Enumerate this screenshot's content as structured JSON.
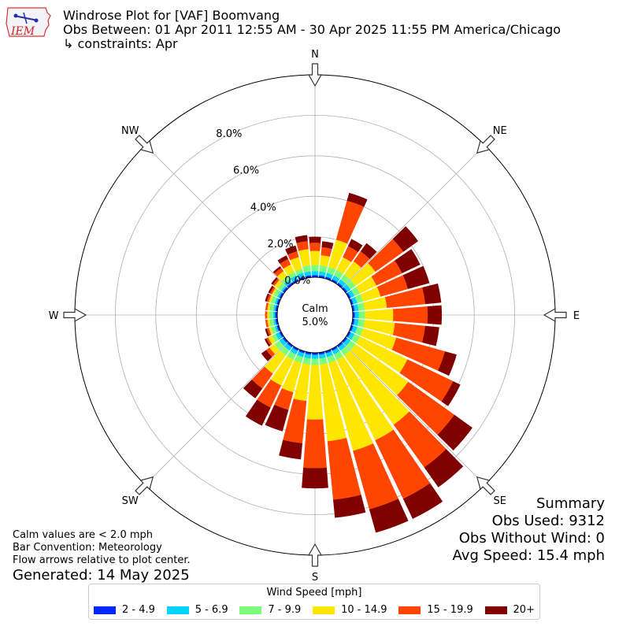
{
  "header": {
    "title": "Windrose Plot for [VAF] Boomvang",
    "subtitle": "Obs Between: 01 Apr 2011 12:55 AM - 30 Apr 2025 11:55 PM America/Chicago",
    "constraints": "↳ constraints: Apr"
  },
  "logo": {
    "text": "IEM"
  },
  "notes": {
    "line1": "Calm values are < 2.0 mph",
    "line2": "Bar Convention: Meteorology",
    "line3": "Flow arrows relative to plot center.",
    "generated": "Generated: 14 May 2025"
  },
  "summary": {
    "title": "Summary",
    "obs_used": "Obs Used: 9312",
    "obs_without_wind": "Obs Without Wind: 0",
    "avg_speed": "Avg Speed: 15.4 mph"
  },
  "legend": {
    "title": "Wind Speed [mph]",
    "items": [
      {
        "label": "2 - 4.9",
        "color": "#0028ff"
      },
      {
        "label": "5 - 6.9",
        "color": "#00d4ff"
      },
      {
        "label": "7 - 9.9",
        "color": "#7cff7a"
      },
      {
        "label": "10 - 14.9",
        "color": "#ffe600"
      },
      {
        "label": "15 - 19.9",
        "color": "#ff4500"
      },
      {
        "label": "20+",
        "color": "#800000"
      }
    ]
  },
  "chart_data": {
    "type": "windrose",
    "calm_label": "Calm",
    "calm_percent": "5.0%",
    "compass_labels": [
      "N",
      "NE",
      "E",
      "SE",
      "S",
      "SW",
      "W",
      "NW"
    ],
    "radial_tick_labels": [
      "0.0%",
      "2.0%",
      "4.0%",
      "6.0%",
      "8.0%"
    ],
    "speed_bins": [
      "2 - 4.9",
      "5 - 6.9",
      "7 - 9.9",
      "10 - 14.9",
      "15 - 19.9",
      "20+"
    ],
    "sector_width_deg": 10,
    "direction_deg": [
      0,
      10,
      20,
      30,
      40,
      50,
      60,
      70,
      80,
      90,
      100,
      110,
      120,
      130,
      140,
      150,
      160,
      170,
      180,
      190,
      200,
      210,
      220,
      230,
      240,
      250,
      260,
      270,
      280,
      290,
      300,
      310,
      320,
      330,
      340,
      350
    ],
    "cumulative_percent": [
      [
        0.1,
        0.3,
        0.6,
        1.3,
        1.7,
        2.0
      ],
      [
        0.1,
        0.3,
        0.6,
        1.1,
        1.5,
        1.8
      ],
      [
        0.1,
        0.3,
        0.6,
        2.0,
        4.0,
        4.4
      ],
      [
        0.1,
        0.3,
        0.6,
        1.3,
        1.9,
        2.3
      ],
      [
        0.1,
        0.3,
        0.6,
        1.4,
        2.0,
        2.5
      ],
      [
        0.1,
        0.3,
        0.6,
        1.8,
        3.5,
        4.4
      ],
      [
        0.1,
        0.3,
        0.6,
        1.5,
        2.9,
        3.9
      ],
      [
        0.1,
        0.3,
        0.6,
        1.5,
        2.9,
        4.0
      ],
      [
        0.1,
        0.3,
        0.6,
        1.7,
        3.6,
        4.4
      ],
      [
        0.1,
        0.3,
        0.6,
        2.0,
        3.7,
        4.4
      ],
      [
        0.1,
        0.3,
        0.6,
        2.1,
        3.6,
        4.3
      ],
      [
        0.1,
        0.3,
        0.6,
        2.3,
        4.8,
        5.4
      ],
      [
        0.1,
        0.3,
        0.6,
        3.2,
        5.7,
        6.1
      ],
      [
        0.1,
        0.3,
        0.6,
        3.8,
        6.6,
        7.7
      ],
      [
        0.1,
        0.3,
        0.6,
        4.8,
        7.4,
        8.6
      ],
      [
        0.1,
        0.3,
        0.6,
        5.0,
        8.2,
        9.3
      ],
      [
        0.1,
        0.3,
        0.6,
        5.1,
        8.1,
        9.3
      ],
      [
        0.1,
        0.3,
        0.6,
        4.4,
        7.3,
        8.2
      ],
      [
        0.1,
        0.3,
        0.6,
        3.3,
        5.7,
        6.7
      ],
      [
        0.1,
        0.3,
        0.6,
        2.4,
        4.5,
        5.3
      ],
      [
        0.1,
        0.3,
        0.6,
        2.1,
        3.0,
        4.1
      ],
      [
        0.1,
        0.3,
        0.6,
        2.0,
        3.2,
        4.2
      ],
      [
        0.1,
        0.3,
        0.6,
        1.7,
        2.6,
        3.2
      ],
      [
        0.1,
        0.3,
        0.6,
        0.9,
        1.1,
        1.4
      ],
      [
        0.1,
        0.3,
        0.5,
        0.7,
        0.8,
        0.9
      ],
      [
        0.1,
        0.2,
        0.4,
        0.5,
        0.6,
        0.7
      ],
      [
        0.1,
        0.2,
        0.4,
        0.5,
        0.6,
        0.6
      ],
      [
        0.1,
        0.2,
        0.4,
        0.5,
        0.6,
        0.6
      ],
      [
        0.1,
        0.2,
        0.4,
        0.5,
        0.6,
        0.6
      ],
      [
        0.1,
        0.2,
        0.4,
        0.5,
        0.6,
        0.7
      ],
      [
        0.1,
        0.2,
        0.4,
        0.5,
        0.6,
        0.7
      ],
      [
        0.1,
        0.2,
        0.4,
        0.6,
        0.7,
        0.8
      ],
      [
        0.1,
        0.3,
        0.5,
        0.8,
        1.0,
        1.1
      ],
      [
        0.1,
        0.3,
        0.5,
        0.9,
        1.2,
        1.4
      ],
      [
        0.1,
        0.3,
        0.5,
        1.1,
        1.4,
        1.7
      ],
      [
        0.1,
        0.3,
        0.6,
        1.4,
        1.8,
        2.1
      ]
    ],
    "r_max_percent": 10,
    "grid": true
  }
}
